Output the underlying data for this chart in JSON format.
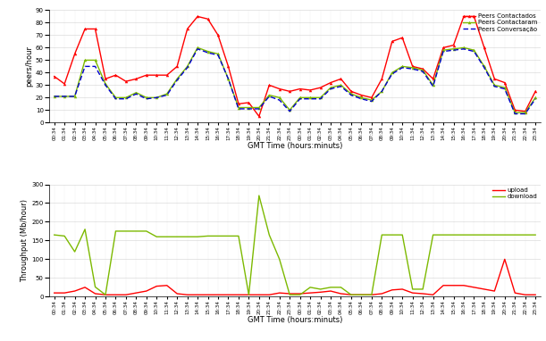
{
  "top_xlabel": "GMT Time (hours:minuts)",
  "top_ylabel": "peers/hour",
  "bottom_xlabel": "GMT Time (hours:minuts)",
  "bottom_ylabel": "Throughput (Mb/hour)",
  "x_labels": [
    "00:34",
    "01:34",
    "02:34",
    "03:34",
    "04:34",
    "05:34",
    "06:34",
    "07:34",
    "08:34",
    "09:34",
    "10:34",
    "11:34",
    "12:34",
    "13:34",
    "14:34",
    "15:34",
    "16:34",
    "17:34",
    "18:34",
    "19:34",
    "20:34",
    "21:34",
    "22:34",
    "23:34",
    "00:34",
    "01:34",
    "02:34",
    "03:34",
    "04:34",
    "05:34",
    "06:34",
    "07:34",
    "08:34",
    "09:34",
    "10:34",
    "11:34",
    "12:34",
    "13:34",
    "14:34",
    "15:34",
    "16:34",
    "17:34",
    "18:34",
    "19:34",
    "20:34",
    "21:34",
    "22:34",
    "23:34"
  ],
  "peers_contactados": [
    37,
    31,
    55,
    75,
    75,
    35,
    38,
    33,
    35,
    38,
    38,
    38,
    45,
    75,
    85,
    83,
    70,
    45,
    15,
    16,
    5,
    30,
    27,
    25,
    27,
    26,
    28,
    32,
    35,
    25,
    22,
    20,
    35,
    65,
    68,
    45,
    43,
    35,
    60,
    62,
    85,
    85,
    60,
    35,
    32,
    10,
    9,
    25
  ],
  "peers_contactaram": [
    21,
    21,
    21,
    50,
    50,
    31,
    20,
    20,
    24,
    20,
    20,
    23,
    35,
    45,
    60,
    57,
    55,
    35,
    12,
    12,
    12,
    22,
    20,
    10,
    20,
    20,
    20,
    28,
    30,
    23,
    20,
    18,
    25,
    40,
    45,
    44,
    42,
    30,
    58,
    59,
    60,
    58,
    45,
    30,
    28,
    8,
    8,
    20
  ],
  "peers_conversacao": [
    21,
    21,
    21,
    45,
    45,
    30,
    19,
    19,
    23,
    19,
    20,
    22,
    34,
    44,
    59,
    56,
    54,
    35,
    11,
    11,
    11,
    21,
    18,
    9,
    19,
    19,
    19,
    27,
    29,
    22,
    19,
    17,
    25,
    39,
    44,
    43,
    41,
    29,
    57,
    58,
    59,
    57,
    44,
    29,
    27,
    7,
    7,
    19
  ],
  "upload": [
    10,
    10,
    15,
    25,
    8,
    5,
    5,
    5,
    10,
    15,
    28,
    30,
    8,
    5,
    5,
    5,
    5,
    5,
    5,
    5,
    5,
    5,
    10,
    8,
    8,
    10,
    12,
    15,
    8,
    5,
    5,
    5,
    8,
    18,
    20,
    10,
    8,
    5,
    30,
    30,
    30,
    25,
    20,
    15,
    100,
    10,
    5,
    5
  ],
  "download": [
    165,
    162,
    120,
    180,
    26,
    5,
    175,
    175,
    175,
    175,
    160,
    160,
    160,
    160,
    160,
    162,
    162,
    162,
    162,
    5,
    270,
    165,
    100,
    5,
    5,
    25,
    20,
    25,
    25,
    5,
    5,
    5,
    165,
    165,
    165,
    20,
    20,
    165,
    165,
    165,
    165,
    165,
    165,
    165,
    165,
    165,
    165,
    165
  ],
  "peers_ylim": [
    0,
    90
  ],
  "peers_yticks": [
    0,
    10,
    20,
    30,
    40,
    50,
    60,
    70,
    80,
    90
  ],
  "throughput_ylim": [
    0,
    300
  ],
  "throughput_yticks": [
    0,
    50,
    100,
    150,
    200,
    250,
    300
  ],
  "top_legend": [
    "Peers Contactados",
    "Peers Contactaram",
    "Peers Conversação"
  ],
  "bottom_legend": [
    "upload",
    "download"
  ],
  "red_color": "#ff0000",
  "green_color": "#7cb900",
  "blue_dashed_color": "#0000cd",
  "bg_color": "#ffffff"
}
